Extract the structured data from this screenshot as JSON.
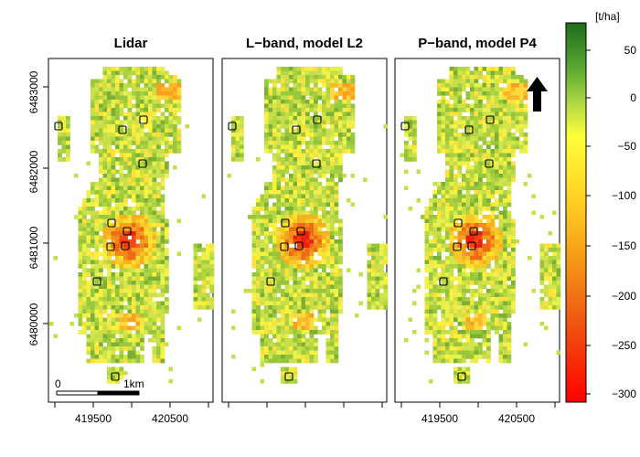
{
  "panels": [
    {
      "title": "Lidar"
    },
    {
      "title": "L−band, model L2"
    },
    {
      "title": "P−band, model P4"
    }
  ],
  "y_axis": {
    "ticks": [
      "6483000",
      "6482000",
      "6481000",
      "6480000"
    ]
  },
  "x_axis": {
    "ticks": [
      "419500",
      "420500"
    ]
  },
  "colorbar": {
    "unit": "[t/ha]",
    "ticks": [
      "50",
      "0",
      "−50",
      "−100",
      "−150",
      "−200",
      "−250",
      "−300"
    ],
    "colors": [
      "#1e6b1e",
      "#7fb832",
      "#c8e04a",
      "#ffff3a",
      "#ffd21e",
      "#f5a018",
      "#ef6a12",
      "#ea2e10",
      "#ff0000"
    ]
  },
  "scalebar": {
    "start_label": "0",
    "end_label": "1km"
  },
  "north_arrow": "north-arrow-icon"
}
